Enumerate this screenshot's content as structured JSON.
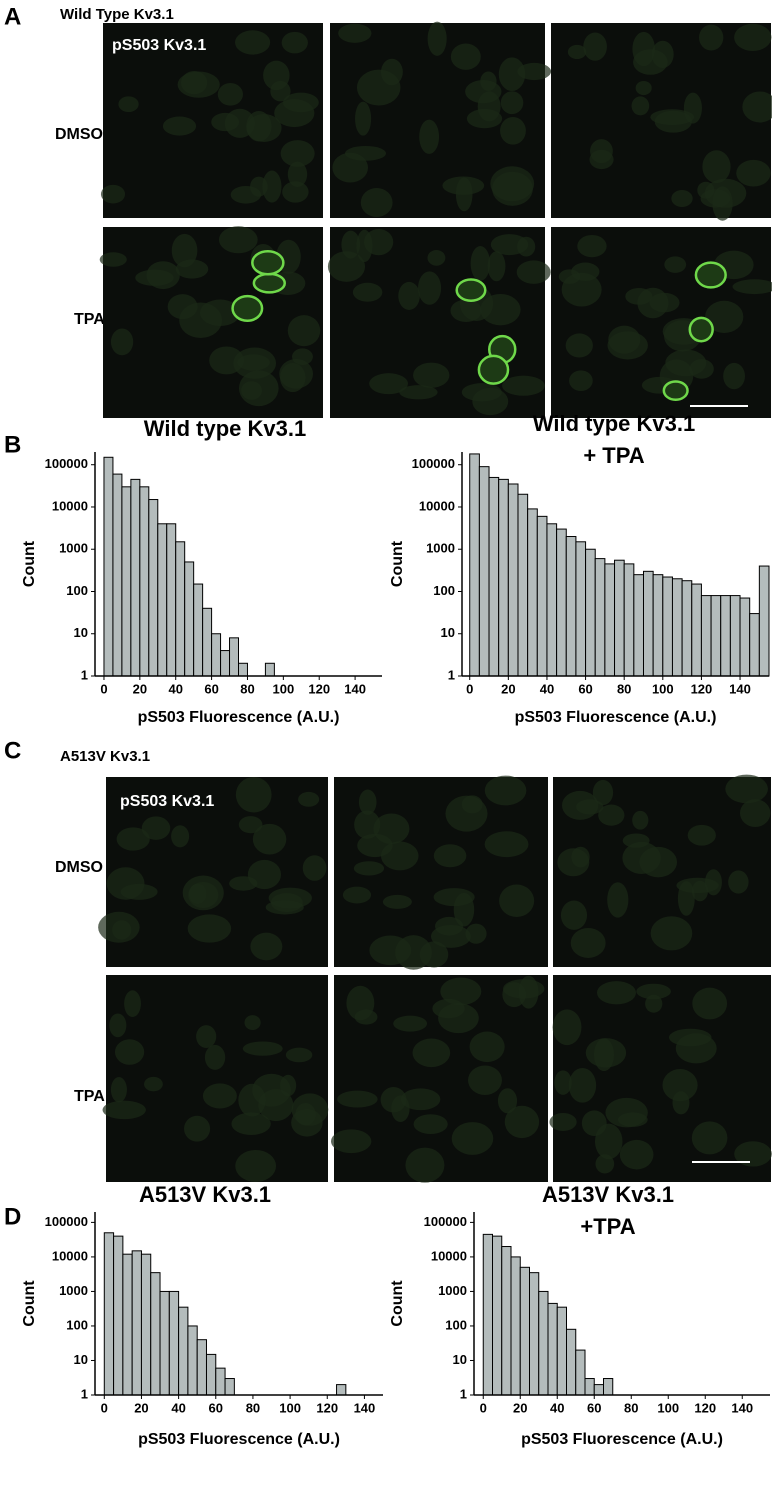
{
  "panel_labels": [
    "A",
    "B",
    "C",
    "D"
  ],
  "micrographs": [
    {
      "title": "Wild Type Kv3.1",
      "stain": "pS503 Kv3.1",
      "rows": [
        "DMSO",
        "TPA"
      ]
    },
    {
      "title": "A513V Kv3.1",
      "stain": "pS503 Kv3.1",
      "rows": [
        "DMSO",
        "TPA"
      ]
    }
  ],
  "chart_data": [
    {
      "type": "histogram",
      "title": [
        "Wild type Kv3.1"
      ],
      "x_label": "pS503 Fluorescence (A.U.)",
      "y_label": "Count",
      "bins": [
        0,
        5,
        10,
        15,
        20,
        25,
        30,
        35,
        40,
        45,
        50,
        55,
        60,
        65,
        70,
        75,
        80,
        85,
        90,
        95
      ],
      "values": [
        150000,
        60000,
        30000,
        45000,
        30000,
        15000,
        4000,
        4000,
        1500,
        500,
        150,
        40,
        10,
        4,
        8,
        2,
        0,
        0,
        2
      ],
      "color": "#b4bcbc",
      "log_y": true,
      "xlim": [
        -5,
        155
      ],
      "ylim": [
        1,
        200000
      ],
      "xticks": [
        0,
        20,
        40,
        60,
        80,
        100,
        120,
        140
      ],
      "yticks": [
        1,
        10,
        100,
        1000,
        10000,
        100000
      ]
    },
    {
      "type": "histogram",
      "title": [
        "Wild type Kv3.1",
        "+ TPA"
      ],
      "x_label": "pS503 Fluorescence (A.U.)",
      "y_label": "Count",
      "bins": [
        0,
        5,
        10,
        15,
        20,
        25,
        30,
        35,
        40,
        45,
        50,
        55,
        60,
        65,
        70,
        75,
        80,
        85,
        90,
        95,
        100,
        105,
        110,
        115,
        120,
        125,
        130,
        135,
        140,
        145,
        150,
        155
      ],
      "values": [
        180000,
        90000,
        50000,
        45000,
        35000,
        20000,
        9000,
        6000,
        4000,
        3000,
        2000,
        1500,
        1000,
        600,
        450,
        550,
        450,
        250,
        300,
        250,
        220,
        200,
        180,
        150,
        80,
        80,
        80,
        80,
        70,
        30,
        400
      ],
      "color": "#b4bcbc",
      "log_y": true,
      "xlim": [
        -4,
        155
      ],
      "ylim": [
        1,
        200000
      ],
      "xticks": [
        0,
        20,
        40,
        60,
        80,
        100,
        120,
        140
      ],
      "yticks": [
        1,
        10,
        100,
        1000,
        10000,
        100000
      ]
    },
    {
      "type": "histogram",
      "title": [
        "A513V  Kv3.1"
      ],
      "x_label": "pS503 Fluorescence (A.U.)",
      "y_label": "Count",
      "bins": [
        0,
        5,
        10,
        15,
        20,
        25,
        30,
        35,
        40,
        45,
        50,
        55,
        60,
        65,
        70,
        75,
        80,
        85,
        90,
        95,
        100,
        105,
        110,
        115,
        120,
        125,
        130
      ],
      "values": [
        50000,
        40000,
        12000,
        15000,
        12000,
        3500,
        1000,
        1000,
        350,
        100,
        40,
        15,
        6,
        3,
        0,
        0,
        0,
        0,
        0,
        0,
        0,
        0,
        0,
        0,
        0,
        2
      ],
      "color": "#b4bcbc",
      "log_y": true,
      "xlim": [
        -5,
        150
      ],
      "ylim": [
        1,
        200000
      ],
      "xticks": [
        0,
        20,
        40,
        60,
        80,
        100,
        120,
        140
      ],
      "yticks": [
        1,
        10,
        100,
        1000,
        10000,
        100000
      ]
    },
    {
      "type": "histogram",
      "title": [
        "A513V Kv3.1",
        "+TPA"
      ],
      "x_label": "pS503 Fluorescence (A.U.)",
      "y_label": "Count",
      "bins": [
        0,
        5,
        10,
        15,
        20,
        25,
        30,
        35,
        40,
        45,
        50,
        55,
        60,
        65,
        70
      ],
      "values": [
        45000,
        40000,
        20000,
        10000,
        5000,
        3500,
        1000,
        450,
        350,
        80,
        20,
        3,
        2,
        3
      ],
      "color": "#b4bcbc",
      "log_y": true,
      "xlim": [
        -5,
        155
      ],
      "ylim": [
        1,
        200000
      ],
      "xticks": [
        0,
        20,
        40,
        60,
        80,
        100,
        120,
        140
      ],
      "yticks": [
        1,
        10,
        100,
        1000,
        10000,
        100000
      ]
    }
  ]
}
